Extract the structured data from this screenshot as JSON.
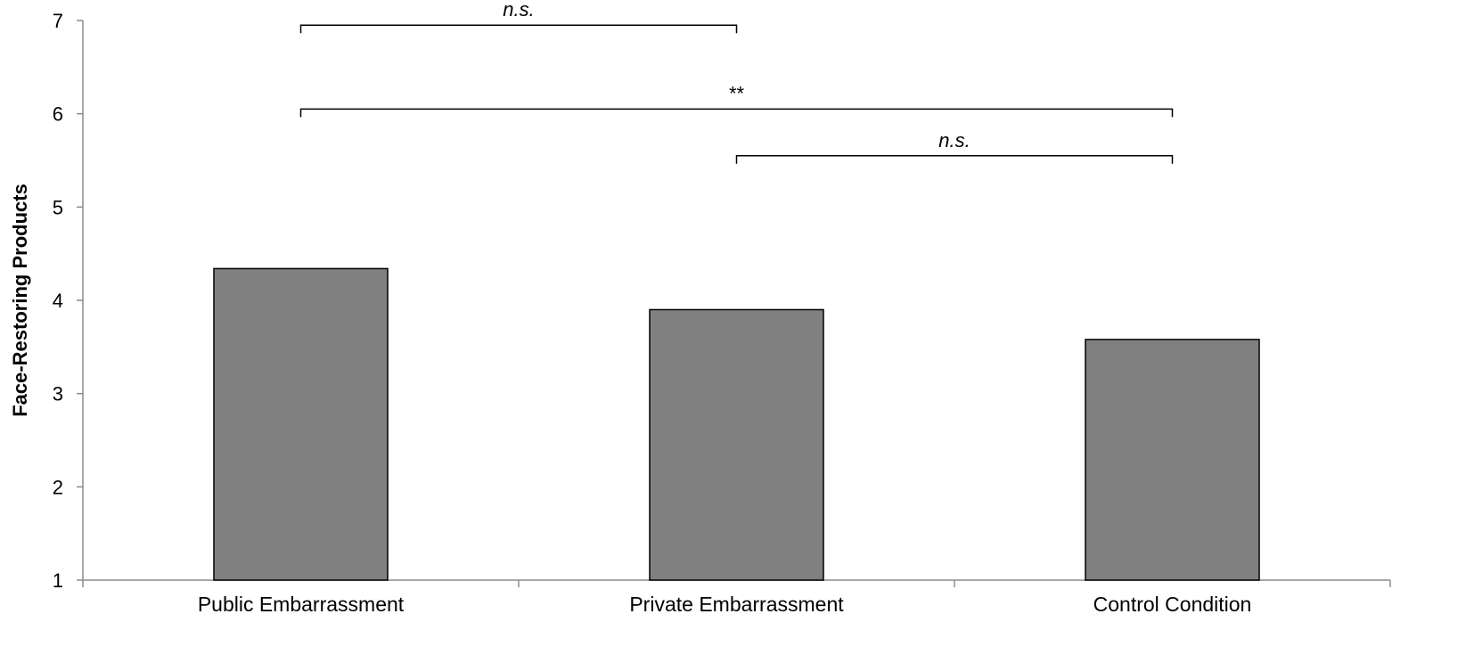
{
  "chart_data": {
    "type": "bar",
    "ylabel": "Face-Restoring Products",
    "xlabel": "",
    "title": "",
    "ylim": [
      1,
      7
    ],
    "yticks": [
      1,
      2,
      3,
      4,
      5,
      6,
      7
    ],
    "grid": false,
    "legend": "none",
    "bar_color": "#808080",
    "bar_edge_color": "#000000",
    "categories": [
      "Public Embarrassment",
      "Private Embarrassment",
      "Control Condition"
    ],
    "values": [
      4.34,
      3.9,
      3.58
    ],
    "annotations": [
      {
        "from": 0,
        "to": 1,
        "label": "n.s.",
        "italic": true,
        "y": 6.95
      },
      {
        "from": 0,
        "to": 2,
        "label": "**",
        "italic": false,
        "y": 6.05
      },
      {
        "from": 1,
        "to": 2,
        "label": "n.s.",
        "italic": true,
        "y": 5.55
      }
    ]
  }
}
